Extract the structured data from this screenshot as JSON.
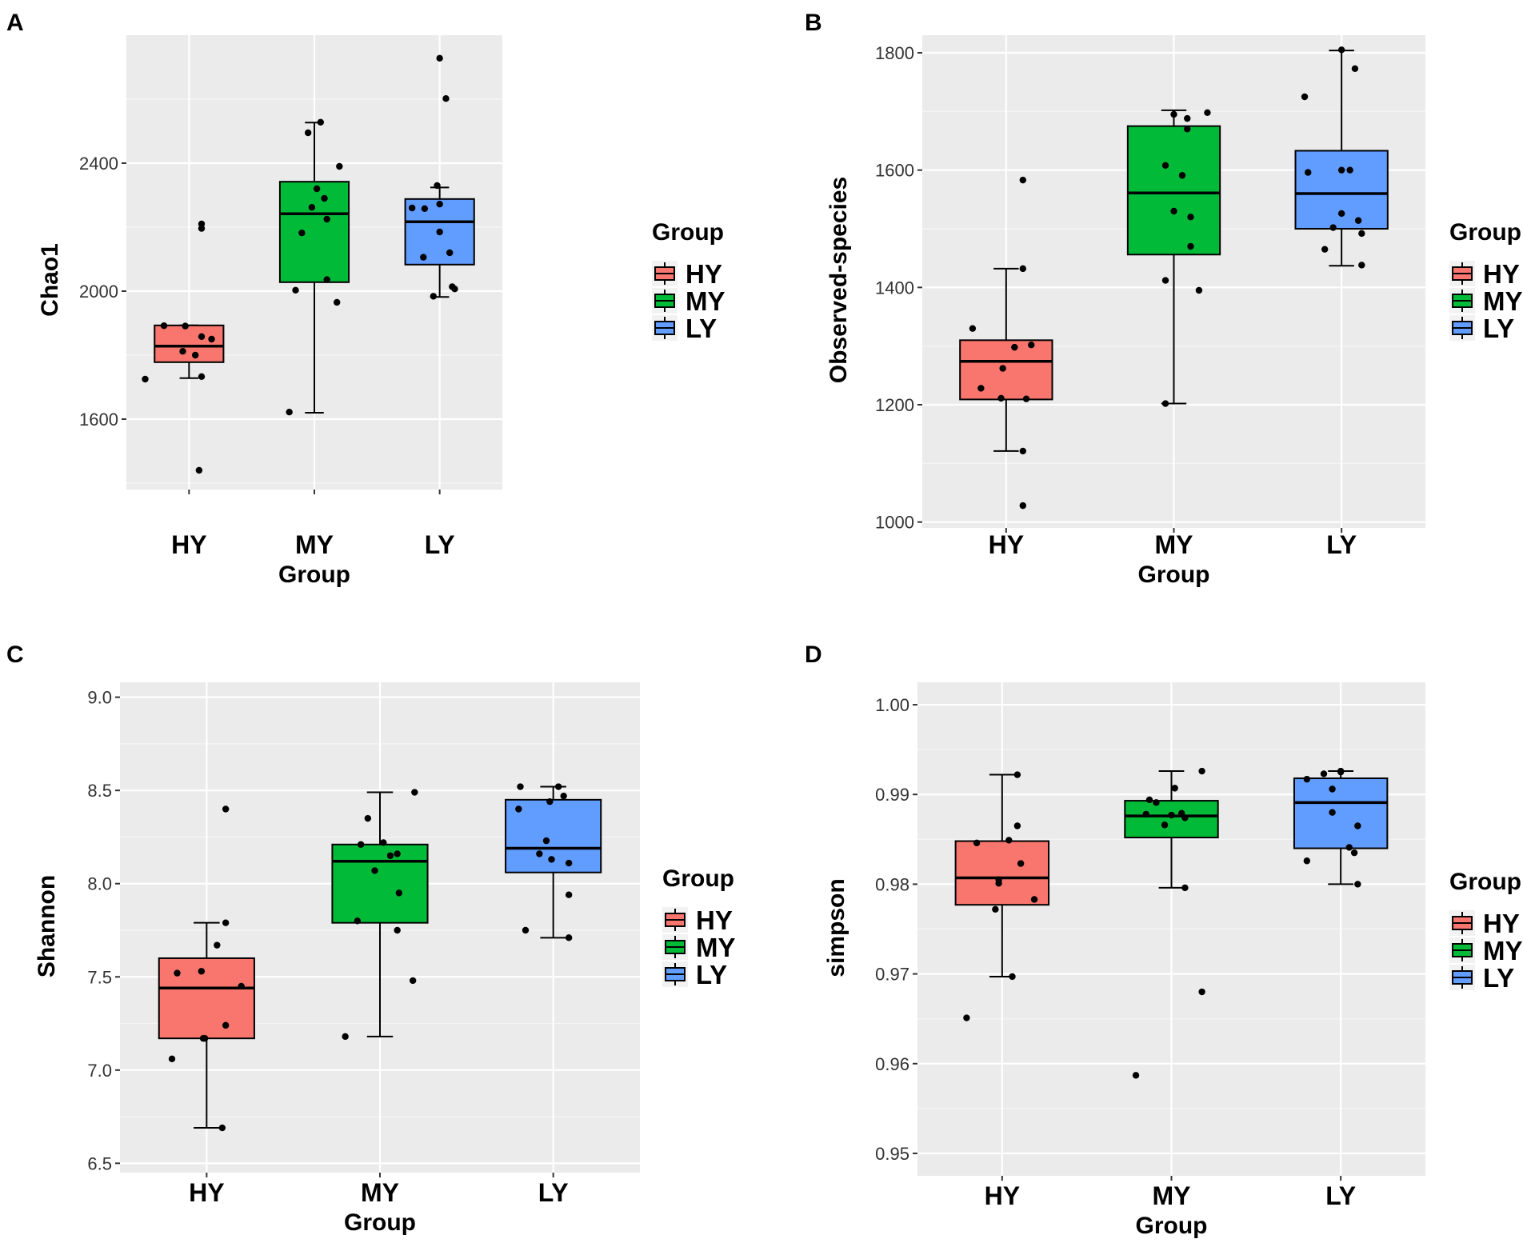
{
  "colors": {
    "panel_bg": "#EBEBEB",
    "grid_major": "#FFFFFF",
    "grid_minor": "#F5F5F5",
    "HY": "#F8766D",
    "MY": "#00BA38",
    "LY": "#619CFF",
    "points": "#000000"
  },
  "chart_data": [
    {
      "panel": "A",
      "type": "box",
      "xlabel": "Group",
      "ylabel": "Chao1",
      "categories": [
        "HY",
        "MY",
        "LY"
      ],
      "ylim": [
        1380,
        2800
      ],
      "yticks": [
        1600,
        2000,
        2400
      ],
      "ytick_labels": [
        "1600",
        "2000",
        "2400"
      ],
      "legend_title": "Group",
      "legend_entries": [
        "HY",
        "MY",
        "LY"
      ],
      "boxes": [
        {
          "group": "HY",
          "whisker_low": 1728,
          "q1": 1778,
          "median": 1828,
          "q3": 1893,
          "whisker_high": 1893
        },
        {
          "group": "MY",
          "whisker_low": 1620,
          "q1": 2028,
          "median": 2242,
          "q3": 2342,
          "whisker_high": 2527
        },
        {
          "group": "LY",
          "whisker_low": 1982,
          "q1": 2083,
          "median": 2217,
          "q3": 2288,
          "whisker_high": 2324
        }
      ],
      "points": [
        {
          "group": "HY",
          "dx": -0.35,
          "y": 1725
        },
        {
          "group": "HY",
          "dx": -0.2,
          "y": 1892
        },
        {
          "group": "HY",
          "dx": -0.05,
          "y": 1812
        },
        {
          "group": "HY",
          "dx": -0.03,
          "y": 1891
        },
        {
          "group": "HY",
          "dx": 0.05,
          "y": 1800
        },
        {
          "group": "HY",
          "dx": 0.1,
          "y": 1858
        },
        {
          "group": "HY",
          "dx": 0.18,
          "y": 1850
        },
        {
          "group": "HY",
          "dx": 0.1,
          "y": 1733
        },
        {
          "group": "HY",
          "dx": 0.1,
          "y": 2196
        },
        {
          "group": "HY",
          "dx": 0.1,
          "y": 2210
        },
        {
          "group": "HY",
          "dx": 0.08,
          "y": 1440
        },
        {
          "group": "MY",
          "dx": -0.2,
          "y": 1622
        },
        {
          "group": "MY",
          "dx": -0.15,
          "y": 2003
        },
        {
          "group": "MY",
          "dx": -0.1,
          "y": 2182
        },
        {
          "group": "MY",
          "dx": -0.05,
          "y": 2495
        },
        {
          "group": "MY",
          "dx": -0.02,
          "y": 2262
        },
        {
          "group": "MY",
          "dx": 0.02,
          "y": 2320
        },
        {
          "group": "MY",
          "dx": 0.05,
          "y": 2528
        },
        {
          "group": "MY",
          "dx": 0.08,
          "y": 2290
        },
        {
          "group": "MY",
          "dx": 0.1,
          "y": 2036
        },
        {
          "group": "MY",
          "dx": 0.1,
          "y": 2225
        },
        {
          "group": "MY",
          "dx": 0.18,
          "y": 1965
        },
        {
          "group": "MY",
          "dx": 0.2,
          "y": 2390
        },
        {
          "group": "LY",
          "dx": -0.22,
          "y": 2260
        },
        {
          "group": "LY",
          "dx": -0.12,
          "y": 2258
        },
        {
          "group": "LY",
          "dx": -0.13,
          "y": 2106
        },
        {
          "group": "LY",
          "dx": -0.05,
          "y": 1984
        },
        {
          "group": "LY",
          "dx": -0.02,
          "y": 2330
        },
        {
          "group": "LY",
          "dx": 0.0,
          "y": 2728
        },
        {
          "group": "LY",
          "dx": 0.0,
          "y": 2185
        },
        {
          "group": "LY",
          "dx": 0.0,
          "y": 2272
        },
        {
          "group": "LY",
          "dx": 0.05,
          "y": 2602
        },
        {
          "group": "LY",
          "dx": 0.08,
          "y": 2120
        },
        {
          "group": "LY",
          "dx": 0.1,
          "y": 2014
        },
        {
          "group": "LY",
          "dx": 0.12,
          "y": 2007
        }
      ]
    },
    {
      "panel": "B",
      "type": "box",
      "xlabel": "Group",
      "ylabel": "Observed-species",
      "categories": [
        "HY",
        "MY",
        "LY"
      ],
      "ylim": [
        990,
        1830
      ],
      "yticks": [
        1000,
        1200,
        1400,
        1600,
        1800
      ],
      "ytick_labels": [
        "1000",
        "1200",
        "1400",
        "1600",
        "1800"
      ],
      "legend_title": "Group",
      "legend_entries": [
        "HY",
        "MY",
        "LY"
      ],
      "boxes": [
        {
          "group": "HY",
          "whisker_low": 1121,
          "q1": 1209,
          "median": 1274,
          "q3": 1310,
          "whisker_high": 1432
        },
        {
          "group": "MY",
          "whisker_low": 1202,
          "q1": 1456,
          "median": 1561,
          "q3": 1675,
          "whisker_high": 1702
        },
        {
          "group": "LY",
          "whisker_low": 1437,
          "q1": 1500,
          "median": 1560,
          "q3": 1633,
          "whisker_high": 1804
        }
      ],
      "points": [
        {
          "group": "HY",
          "dx": -0.15,
          "y": 1228
        },
        {
          "group": "HY",
          "dx": -0.2,
          "y": 1330
        },
        {
          "group": "HY",
          "dx": -0.02,
          "y": 1262
        },
        {
          "group": "HY",
          "dx": -0.03,
          "y": 1211
        },
        {
          "group": "HY",
          "dx": 0.05,
          "y": 1298
        },
        {
          "group": "HY",
          "dx": 0.1,
          "y": 1432
        },
        {
          "group": "HY",
          "dx": 0.1,
          "y": 1121
        },
        {
          "group": "HY",
          "dx": 0.1,
          "y": 1028
        },
        {
          "group": "HY",
          "dx": 0.1,
          "y": 1583
        },
        {
          "group": "HY",
          "dx": 0.15,
          "y": 1302
        },
        {
          "group": "HY",
          "dx": 0.12,
          "y": 1210
        },
        {
          "group": "MY",
          "dx": -0.05,
          "y": 1412
        },
        {
          "group": "MY",
          "dx": -0.05,
          "y": 1608
        },
        {
          "group": "MY",
          "dx": -0.05,
          "y": 1202
        },
        {
          "group": "MY",
          "dx": 0.0,
          "y": 1530
        },
        {
          "group": "MY",
          "dx": 0.0,
          "y": 1695
        },
        {
          "group": "MY",
          "dx": 0.05,
          "y": 1591
        },
        {
          "group": "MY",
          "dx": 0.08,
          "y": 1688
        },
        {
          "group": "MY",
          "dx": 0.08,
          "y": 1670
        },
        {
          "group": "MY",
          "dx": 0.1,
          "y": 1520
        },
        {
          "group": "MY",
          "dx": 0.1,
          "y": 1470
        },
        {
          "group": "MY",
          "dx": 0.15,
          "y": 1395
        },
        {
          "group": "MY",
          "dx": 0.2,
          "y": 1698
        },
        {
          "group": "LY",
          "dx": -0.22,
          "y": 1725
        },
        {
          "group": "LY",
          "dx": -0.2,
          "y": 1596
        },
        {
          "group": "LY",
          "dx": -0.1,
          "y": 1465
        },
        {
          "group": "LY",
          "dx": -0.05,
          "y": 1502
        },
        {
          "group": "LY",
          "dx": 0.0,
          "y": 1526
        },
        {
          "group": "LY",
          "dx": 0.0,
          "y": 1600
        },
        {
          "group": "LY",
          "dx": 0.0,
          "y": 1805
        },
        {
          "group": "LY",
          "dx": 0.05,
          "y": 1600
        },
        {
          "group": "LY",
          "dx": 0.08,
          "y": 1773
        },
        {
          "group": "LY",
          "dx": 0.1,
          "y": 1514
        },
        {
          "group": "LY",
          "dx": 0.12,
          "y": 1492
        },
        {
          "group": "LY",
          "dx": 0.12,
          "y": 1438
        }
      ]
    },
    {
      "panel": "C",
      "type": "box",
      "xlabel": "Group",
      "ylabel": "Shannon",
      "categories": [
        "HY",
        "MY",
        "LY"
      ],
      "ylim": [
        6.45,
        9.08
      ],
      "yticks": [
        6.5,
        7.0,
        7.5,
        8.0,
        8.5,
        9.0
      ],
      "ytick_labels": [
        "6.5",
        "7.0",
        "7.5",
        "8.0",
        "8.5",
        "9.0"
      ],
      "legend_title": "Group",
      "legend_entries": [
        "HY",
        "MY",
        "LY"
      ],
      "boxes": [
        {
          "group": "HY",
          "whisker_low": 6.69,
          "q1": 7.17,
          "median": 7.44,
          "q3": 7.6,
          "whisker_high": 7.79
        },
        {
          "group": "MY",
          "whisker_low": 7.18,
          "q1": 7.79,
          "median": 8.12,
          "q3": 8.21,
          "whisker_high": 8.49
        },
        {
          "group": "LY",
          "whisker_low": 7.71,
          "q1": 8.06,
          "median": 8.19,
          "q3": 8.45,
          "whisker_high": 8.52
        }
      ],
      "points": [
        {
          "group": "HY",
          "dx": -0.2,
          "y": 7.06
        },
        {
          "group": "HY",
          "dx": -0.17,
          "y": 7.52
        },
        {
          "group": "HY",
          "dx": -0.02,
          "y": 7.17
        },
        {
          "group": "HY",
          "dx": -0.03,
          "y": 7.53
        },
        {
          "group": "HY",
          "dx": -0.01,
          "y": 7.17
        },
        {
          "group": "HY",
          "dx": 0.06,
          "y": 7.67
        },
        {
          "group": "HY",
          "dx": 0.09,
          "y": 6.69
        },
        {
          "group": "HY",
          "dx": 0.11,
          "y": 7.79
        },
        {
          "group": "HY",
          "dx": 0.11,
          "y": 7.24
        },
        {
          "group": "HY",
          "dx": 0.11,
          "y": 8.4
        },
        {
          "group": "HY",
          "dx": 0.2,
          "y": 7.45
        },
        {
          "group": "MY",
          "dx": -0.2,
          "y": 7.18
        },
        {
          "group": "MY",
          "dx": -0.13,
          "y": 7.8
        },
        {
          "group": "MY",
          "dx": -0.11,
          "y": 8.21
        },
        {
          "group": "MY",
          "dx": -0.07,
          "y": 8.35
        },
        {
          "group": "MY",
          "dx": -0.03,
          "y": 8.07
        },
        {
          "group": "MY",
          "dx": 0.02,
          "y": 8.22
        },
        {
          "group": "MY",
          "dx": 0.06,
          "y": 8.15
        },
        {
          "group": "MY",
          "dx": 0.1,
          "y": 8.16
        },
        {
          "group": "MY",
          "dx": 0.11,
          "y": 7.95
        },
        {
          "group": "MY",
          "dx": 0.1,
          "y": 7.75
        },
        {
          "group": "MY",
          "dx": 0.19,
          "y": 7.48
        },
        {
          "group": "MY",
          "dx": 0.2,
          "y": 8.49
        },
        {
          "group": "LY",
          "dx": -0.19,
          "y": 8.52
        },
        {
          "group": "LY",
          "dx": -0.2,
          "y": 8.4
        },
        {
          "group": "LY",
          "dx": -0.16,
          "y": 7.75
        },
        {
          "group": "LY",
          "dx": -0.08,
          "y": 8.16
        },
        {
          "group": "LY",
          "dx": -0.04,
          "y": 8.23
        },
        {
          "group": "LY",
          "dx": -0.02,
          "y": 8.44
        },
        {
          "group": "LY",
          "dx": -0.01,
          "y": 8.13
        },
        {
          "group": "LY",
          "dx": 0.03,
          "y": 8.52
        },
        {
          "group": "LY",
          "dx": 0.06,
          "y": 8.47
        },
        {
          "group": "LY",
          "dx": 0.09,
          "y": 8.11
        },
        {
          "group": "LY",
          "dx": 0.09,
          "y": 7.94
        },
        {
          "group": "LY",
          "dx": 0.09,
          "y": 7.71
        }
      ]
    },
    {
      "panel": "D",
      "type": "box",
      "xlabel": "Group",
      "ylabel": "simpson",
      "categories": [
        "HY",
        "MY",
        "LY"
      ],
      "ylim": [
        0.9475,
        1.0025
      ],
      "yticks": [
        0.95,
        0.96,
        0.97,
        0.98,
        0.99,
        1.0
      ],
      "ytick_labels": [
        "0.95",
        "0.96",
        "0.97",
        "0.98",
        "0.99",
        "1.00"
      ],
      "legend_title": "Group",
      "legend_entries": [
        "HY",
        "MY",
        "LY"
      ],
      "boxes": [
        {
          "group": "HY",
          "whisker_low": 0.9697,
          "q1": 0.9777,
          "median": 0.9807,
          "q3": 0.9848,
          "whisker_high": 0.9922
        },
        {
          "group": "MY",
          "whisker_low": 0.9796,
          "q1": 0.9852,
          "median": 0.9876,
          "q3": 0.9893,
          "whisker_high": 0.9926
        },
        {
          "group": "LY",
          "whisker_low": 0.98,
          "q1": 0.984,
          "median": 0.9891,
          "q3": 0.9918,
          "whisker_high": 0.9926
        }
      ],
      "points": [
        {
          "group": "HY",
          "dx": -0.21,
          "y": 0.9651
        },
        {
          "group": "HY",
          "dx": -0.15,
          "y": 0.9846
        },
        {
          "group": "HY",
          "dx": -0.04,
          "y": 0.9772
        },
        {
          "group": "HY",
          "dx": -0.02,
          "y": 0.9801
        },
        {
          "group": "HY",
          "dx": -0.02,
          "y": 0.9805
        },
        {
          "group": "HY",
          "dx": 0.04,
          "y": 0.9849
        },
        {
          "group": "HY",
          "dx": 0.06,
          "y": 0.9697
        },
        {
          "group": "HY",
          "dx": 0.09,
          "y": 0.9865
        },
        {
          "group": "HY",
          "dx": 0.11,
          "y": 0.9823
        },
        {
          "group": "HY",
          "dx": 0.09,
          "y": 0.9922
        },
        {
          "group": "HY",
          "dx": 0.19,
          "y": 0.9783
        },
        {
          "group": "MY",
          "dx": -0.21,
          "y": 0.9587
        },
        {
          "group": "MY",
          "dx": -0.15,
          "y": 0.9878
        },
        {
          "group": "MY",
          "dx": -0.13,
          "y": 0.9894
        },
        {
          "group": "MY",
          "dx": -0.09,
          "y": 0.9891
        },
        {
          "group": "MY",
          "dx": -0.04,
          "y": 0.9866
        },
        {
          "group": "MY",
          "dx": 0.0,
          "y": 0.9877
        },
        {
          "group": "MY",
          "dx": 0.02,
          "y": 0.9907
        },
        {
          "group": "MY",
          "dx": 0.06,
          "y": 0.9879
        },
        {
          "group": "MY",
          "dx": 0.08,
          "y": 0.9874
        },
        {
          "group": "MY",
          "dx": 0.08,
          "y": 0.9796
        },
        {
          "group": "MY",
          "dx": 0.18,
          "y": 0.968
        },
        {
          "group": "MY",
          "dx": 0.18,
          "y": 0.9926
        },
        {
          "group": "LY",
          "dx": -0.2,
          "y": 0.9826
        },
        {
          "group": "LY",
          "dx": -0.2,
          "y": 0.9917
        },
        {
          "group": "LY",
          "dx": -0.1,
          "y": 0.9923
        },
        {
          "group": "LY",
          "dx": -0.05,
          "y": 0.9906
        },
        {
          "group": "LY",
          "dx": -0.05,
          "y": 0.988
        },
        {
          "group": "LY",
          "dx": 0.0,
          "y": 0.9925
        },
        {
          "group": "LY",
          "dx": 0.0,
          "y": 0.9926
        },
        {
          "group": "LY",
          "dx": 0.05,
          "y": 0.9841
        },
        {
          "group": "LY",
          "dx": 0.08,
          "y": 0.9835
        },
        {
          "group": "LY",
          "dx": 0.1,
          "y": 0.9865
        },
        {
          "group": "LY",
          "dx": 0.1,
          "y": 0.98
        }
      ]
    }
  ]
}
